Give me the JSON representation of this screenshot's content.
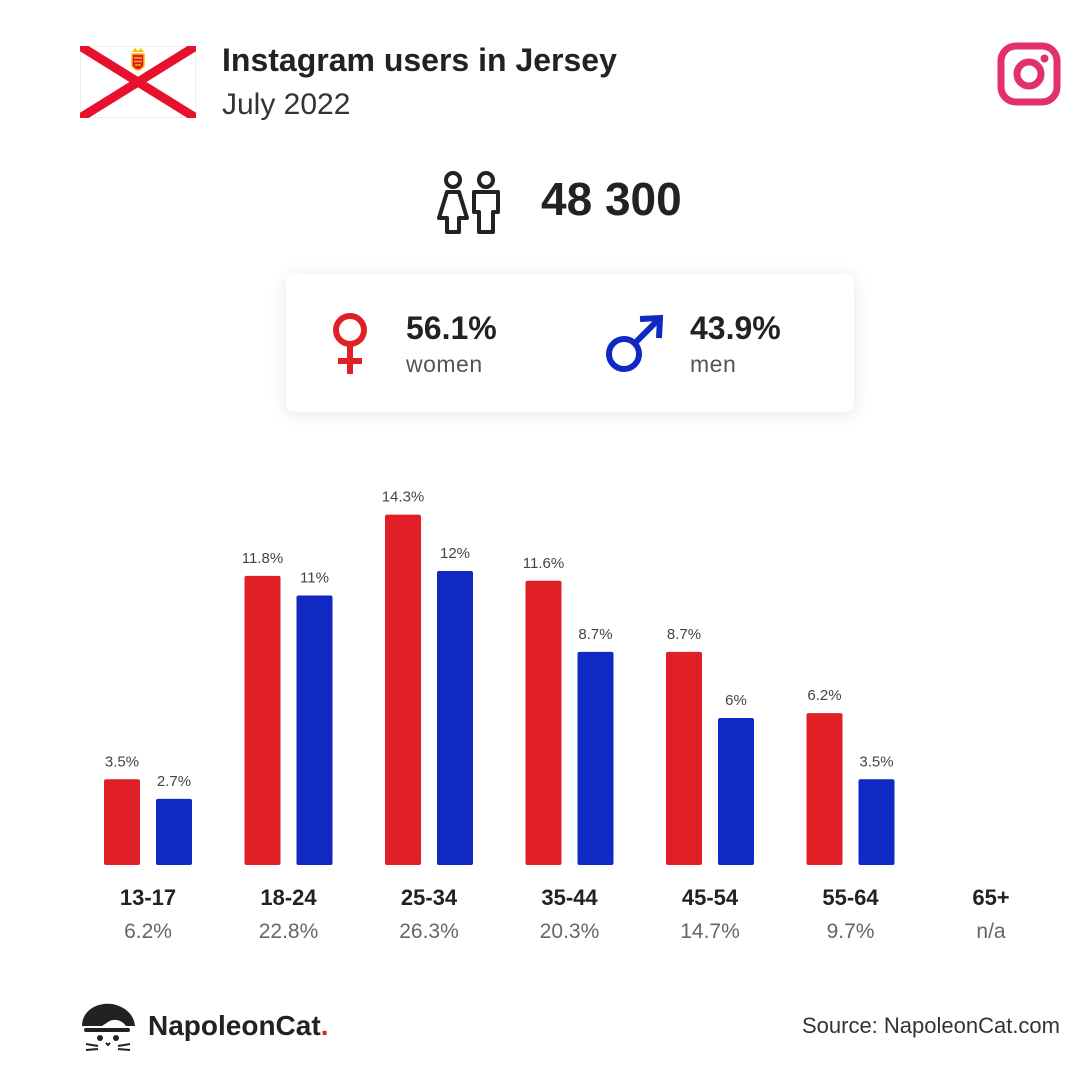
{
  "header": {
    "title": "Instagram users in Jersey",
    "subtitle": "July 2022"
  },
  "total": {
    "value": "48 300",
    "icon": "people-icon"
  },
  "gender": {
    "women": {
      "percent": "56.1%",
      "label": "women",
      "color": "#e01f26",
      "icon": "female-icon"
    },
    "men": {
      "percent": "43.9%",
      "label": "men",
      "color": "#1029c2",
      "icon": "male-icon"
    }
  },
  "chart_data": {
    "type": "bar",
    "title": "",
    "xlabel": "",
    "ylabel": "",
    "ylim": [
      0,
      15
    ],
    "grid": false,
    "legend": "none",
    "categories": [
      "13-17",
      "18-24",
      "25-34",
      "35-44",
      "45-54",
      "55-64",
      "65+"
    ],
    "group_totals": [
      "6.2%",
      "22.8%",
      "26.3%",
      "20.3%",
      "14.7%",
      "9.7%",
      "n/a"
    ],
    "series": [
      {
        "color": "#e01f26",
        "values": [
          3.5,
          11.8,
          14.3,
          11.6,
          8.7,
          6.2,
          null
        ],
        "labels": [
          "3.5%",
          "11.8%",
          "14.3%",
          "11.6%",
          "8.7%",
          "6.2%",
          ""
        ]
      },
      {
        "color": "#1029c2",
        "values": [
          2.7,
          11,
          12,
          8.7,
          6,
          3.5,
          null
        ],
        "labels": [
          "2.7%",
          "11%",
          "12%",
          "8.7%",
          "6%",
          "3.5%",
          ""
        ]
      }
    ]
  },
  "footer": {
    "brand": "NapoleonCat",
    "brand_dot": ".",
    "source": "Source: NapoleonCat.com"
  },
  "colors": {
    "flag_red": "#e8112d",
    "instagram_pink": "#e1306c",
    "text_dark": "#222222"
  }
}
